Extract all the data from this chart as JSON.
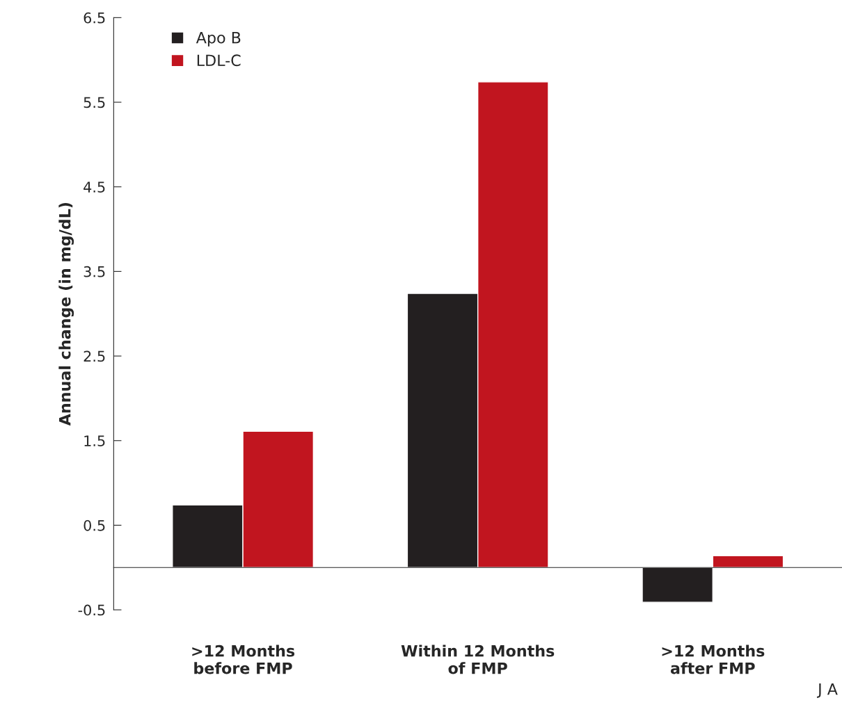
{
  "chart_data": {
    "type": "bar",
    "ylabel": "Annual change (in mg/dL)",
    "categories": [
      ">12 Months\nbefore FMP",
      "Within 12 Months\nof FMP",
      ">12 Months\nafter FMP"
    ],
    "series": [
      {
        "name": "Apo B",
        "color": "#231f20",
        "values": [
          0.74,
          3.24,
          -0.41
        ]
      },
      {
        "name": "LDL-C",
        "color": "#c1151f",
        "values": [
          1.61,
          5.74,
          0.14
        ]
      }
    ],
    "ylim": [
      -0.5,
      6.5
    ],
    "yticks": [
      6.5,
      5.5,
      4.5,
      3.5,
      2.5,
      1.5,
      0.5,
      -0.5
    ],
    "grid": false,
    "legend": "top left",
    "annotations": [
      "J A"
    ]
  }
}
